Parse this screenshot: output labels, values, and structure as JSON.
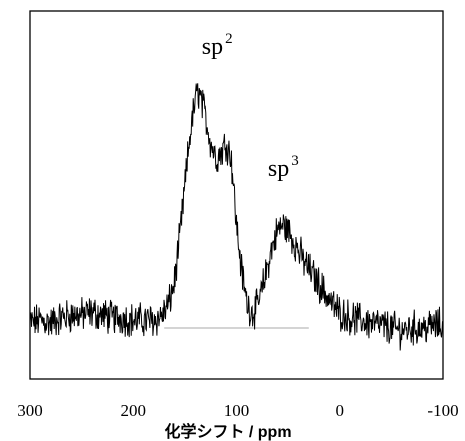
{
  "chart_data": {
    "type": "line",
    "title": "",
    "xlabel": "化学シフト / ppm",
    "ylabel": "",
    "xlim": [
      300,
      -100
    ],
    "x_reversed": true,
    "y_axis_visible": false,
    "grid": false,
    "legend": "none",
    "x_ticks": [
      "300",
      "200",
      "100",
      "0",
      "-100"
    ],
    "x_tick_values": [
      300,
      200,
      100,
      0,
      -100
    ],
    "baseline_x_range": [
      170,
      30
    ],
    "annotations": [
      {
        "base": "sp",
        "sup": "2",
        "x": 122
      },
      {
        "base": "sp",
        "sup": "3",
        "x": 58
      }
    ],
    "series": [
      {
        "x": [
          300,
          290,
          280,
          270,
          260,
          250,
          240,
          230,
          220,
          210,
          200,
          190,
          180,
          175,
          170,
          165,
          160,
          155,
          150,
          145,
          140,
          137,
          134,
          130,
          125,
          120,
          115,
          110,
          105,
          100,
          95,
          90,
          85,
          80,
          75,
          70,
          65,
          60,
          55,
          50,
          45,
          40,
          35,
          30,
          25,
          20,
          15,
          10,
          5,
          0,
          -5,
          -10,
          -20,
          -30,
          -40,
          -50,
          -60,
          -70,
          -80,
          -90,
          -100
        ],
        "y": [
          0.02,
          0.03,
          0.02,
          0.04,
          0.05,
          0.05,
          0.06,
          0.05,
          0.04,
          0.04,
          0.03,
          0.03,
          0.03,
          0.04,
          0.06,
          0.1,
          0.18,
          0.35,
          0.55,
          0.75,
          0.88,
          0.92,
          0.88,
          0.82,
          0.72,
          0.66,
          0.68,
          0.72,
          0.66,
          0.4,
          0.22,
          0.1,
          0.06,
          0.08,
          0.15,
          0.24,
          0.32,
          0.38,
          0.4,
          0.38,
          0.34,
          0.3,
          0.26,
          0.23,
          0.2,
          0.17,
          0.14,
          0.11,
          0.08,
          0.06,
          0.05,
          0.04,
          0.03,
          0.02,
          0.01,
          0.0,
          -0.01,
          0.0,
          0.0,
          0.01,
          0.01
        ]
      }
    ]
  }
}
